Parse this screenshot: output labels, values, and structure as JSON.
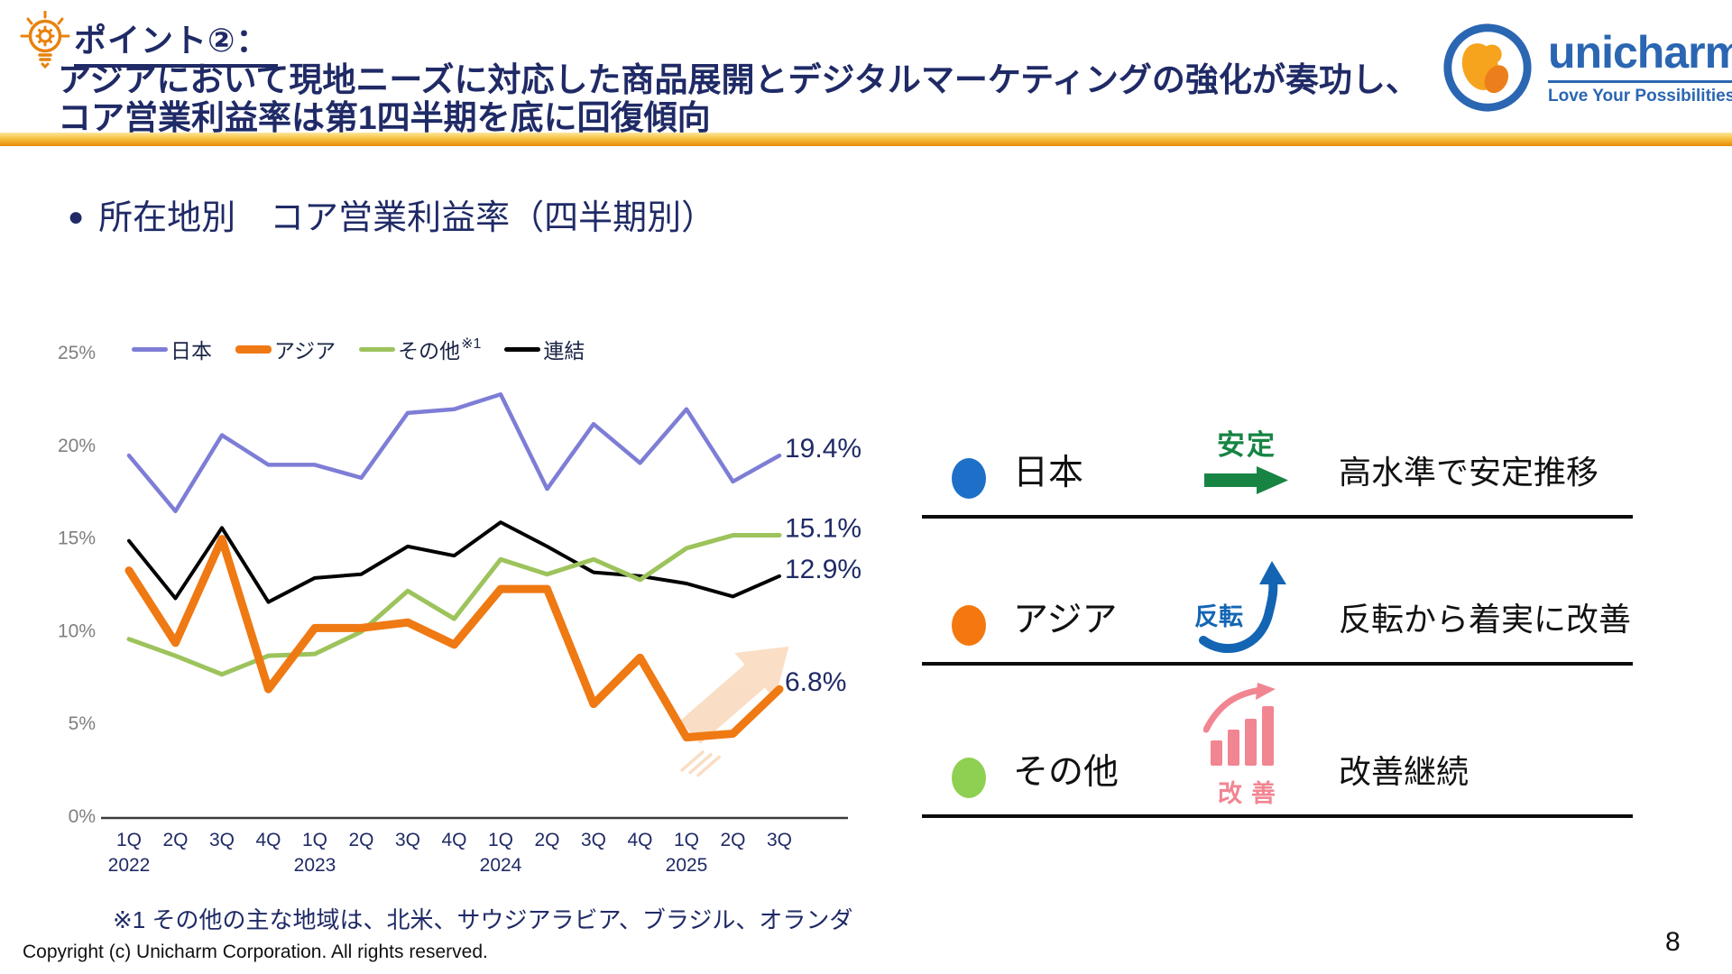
{
  "header": {
    "point_label": "ポイント②：",
    "line1": "アジアにおいて現地ニーズに対応した商品展開とデジタルマーケティングの強化が奏功し、",
    "line2": "コア営業利益率は第1四半期を底に回復傾向"
  },
  "logo": {
    "name": "unicharm",
    "tagline": "Love Your Possibilities"
  },
  "section": {
    "bullet": "●",
    "title": "所在地別　コア営業利益率（四半期別）"
  },
  "chart_data": {
    "type": "line",
    "title": "所在地別　コア営業利益率（四半期別）",
    "unit": "%",
    "grid": false,
    "legend_position": "top",
    "ylim": [
      0,
      25
    ],
    "y_ticks": [
      25,
      20,
      15,
      10,
      5,
      0
    ],
    "categories": [
      "1Q",
      "2Q",
      "3Q",
      "4Q",
      "1Q",
      "2Q",
      "3Q",
      "4Q",
      "1Q",
      "2Q",
      "3Q",
      "4Q",
      "1Q",
      "2Q",
      "3Q"
    ],
    "year_labels": [
      {
        "index": 0,
        "label": "2022"
      },
      {
        "index": 4,
        "label": "2023"
      },
      {
        "index": 8,
        "label": "2024"
      },
      {
        "index": 12,
        "label": "2025"
      }
    ],
    "series": [
      {
        "name": "日本",
        "color": "#7e7dd6",
        "values": [
          19.4,
          16.4,
          20.5,
          18.9,
          18.9,
          18.2,
          21.7,
          21.9,
          22.7,
          17.6,
          21.1,
          19.0,
          21.9,
          18.0,
          19.4
        ],
        "end_label": "19.4%"
      },
      {
        "name": "アジア",
        "color": "#ef7913",
        "values": [
          13.2,
          9.3,
          14.9,
          6.8,
          10.1,
          10.1,
          10.4,
          9.2,
          12.2,
          12.2,
          6.0,
          8.5,
          4.2,
          4.4,
          6.8
        ],
        "end_label": "6.8%"
      },
      {
        "name": "その他",
        "note": "※1",
        "color": "#9dc35c",
        "values": [
          9.5,
          8.6,
          7.6,
          8.6,
          8.7,
          9.9,
          12.1,
          10.6,
          13.8,
          13.0,
          13.8,
          12.7,
          14.4,
          15.1,
          15.1
        ],
        "end_label": "15.1%"
      },
      {
        "name": "連結",
        "color": "#000000",
        "values": [
          14.8,
          11.7,
          15.5,
          11.5,
          12.8,
          13.0,
          14.5,
          14.0,
          15.8,
          14.5,
          13.1,
          12.9,
          12.5,
          11.8,
          12.9
        ],
        "end_label": "12.9%"
      }
    ]
  },
  "panel": {
    "rows": [
      {
        "region": "日本",
        "dot_color": "#1d6fc8",
        "badge": "安定",
        "badge_color": "#178444",
        "desc": "高水準で安定推移"
      },
      {
        "region": "アジア",
        "dot_color": "#f4780f",
        "badge": "反転",
        "badge_color": "#1365b4",
        "desc": "反転から着実に改善"
      },
      {
        "region": "その他",
        "dot_color": "#8ed051",
        "badge": "改善",
        "badge_color": "#f28592",
        "desc": "改善継続"
      }
    ]
  },
  "footnote": "※1 その他の主な地域は、北米、サウジアラビア、ブラジル、オランダ",
  "copyright": "Copyright (c) Unicharm Corporation. All rights reserved.",
  "page_number": "8",
  "colors": {
    "navy": "#1f2a66",
    "tick_gray": "#7f7f7f",
    "axis_line": "#3a3a3a",
    "divider_top": "#fce79e",
    "divider_mid": "#f7c64b",
    "divider_bottom": "#e88a00",
    "trend_arrow_peach": "#f9d9bd",
    "logo_blue": "#2b66b2",
    "logo_orange": "#f6a41d",
    "logo_orange_dark": "#ec7f1c",
    "lamp_orange": "#e8820c"
  }
}
